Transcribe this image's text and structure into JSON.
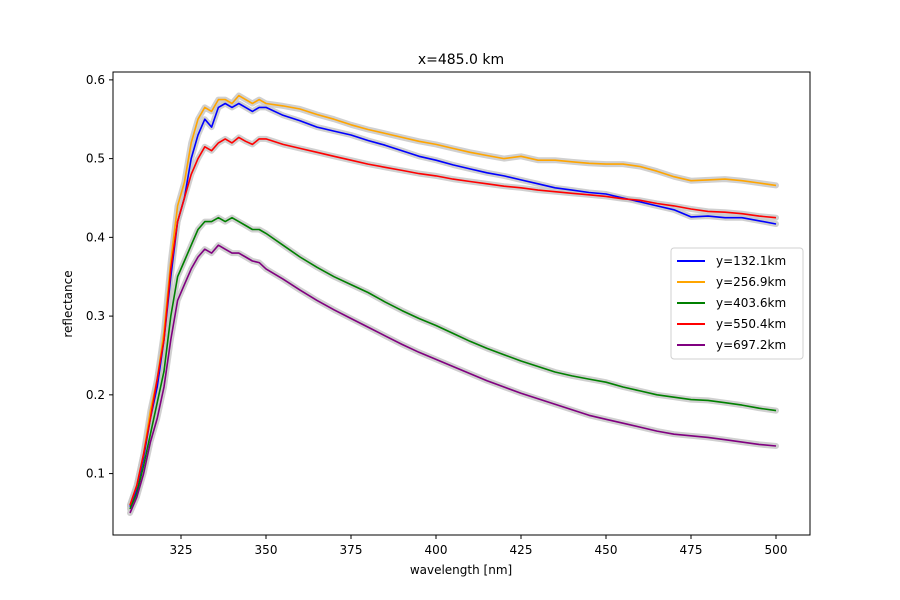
{
  "chart_data": {
    "type": "line",
    "title": "x=485.0 km",
    "xlabel": "wavelength [nm]",
    "ylabel": "reflectance",
    "xlim": [
      305,
      510
    ],
    "ylim": [
      0.022,
      0.61
    ],
    "xticks": [
      325,
      350,
      375,
      400,
      425,
      450,
      475,
      500
    ],
    "yticks": [
      0.1,
      0.2,
      0.3,
      0.4,
      0.5,
      0.6
    ],
    "xtick_labels": [
      "325",
      "350",
      "375",
      "400",
      "425",
      "450",
      "475",
      "500"
    ],
    "ytick_labels": [
      "0.1",
      "0.2",
      "0.3",
      "0.4",
      "0.5",
      "0.6"
    ],
    "grid": false,
    "legend_position": "center-right",
    "uncertainty_band_color": "#c8c8c8",
    "series": [
      {
        "name": "y=132.1km",
        "color": "#0000ff",
        "x": [
          310,
          312,
          314,
          316,
          318,
          320,
          322,
          324,
          326,
          328,
          330,
          332,
          334,
          336,
          338,
          340,
          342,
          344,
          346,
          348,
          350,
          355,
          360,
          365,
          370,
          375,
          380,
          385,
          390,
          395,
          400,
          405,
          410,
          415,
          420,
          425,
          430,
          435,
          440,
          445,
          450,
          455,
          460,
          465,
          470,
          475,
          480,
          485,
          490,
          495,
          500
        ],
        "y": [
          0.058,
          0.08,
          0.12,
          0.17,
          0.21,
          0.27,
          0.35,
          0.42,
          0.45,
          0.5,
          0.53,
          0.55,
          0.54,
          0.565,
          0.57,
          0.565,
          0.57,
          0.565,
          0.56,
          0.565,
          0.565,
          0.555,
          0.548,
          0.54,
          0.535,
          0.53,
          0.523,
          0.517,
          0.51,
          0.503,
          0.498,
          0.492,
          0.487,
          0.482,
          0.478,
          0.473,
          0.468,
          0.463,
          0.46,
          0.457,
          0.455,
          0.45,
          0.445,
          0.44,
          0.435,
          0.426,
          0.427,
          0.425,
          0.425,
          0.421,
          0.417
        ]
      },
      {
        "name": "y=256.9km",
        "color": "#ffa500",
        "x": [
          310,
          312,
          314,
          316,
          318,
          320,
          322,
          324,
          326,
          328,
          330,
          332,
          334,
          336,
          338,
          340,
          342,
          344,
          346,
          348,
          350,
          355,
          360,
          365,
          370,
          375,
          380,
          385,
          390,
          395,
          400,
          405,
          410,
          415,
          420,
          425,
          430,
          435,
          440,
          445,
          450,
          455,
          460,
          465,
          470,
          475,
          480,
          485,
          490,
          495,
          500
        ],
        "y": [
          0.06,
          0.085,
          0.125,
          0.18,
          0.22,
          0.28,
          0.37,
          0.44,
          0.47,
          0.52,
          0.55,
          0.565,
          0.56,
          0.575,
          0.575,
          0.57,
          0.58,
          0.575,
          0.57,
          0.575,
          0.57,
          0.567,
          0.563,
          0.556,
          0.55,
          0.543,
          0.537,
          0.532,
          0.527,
          0.522,
          0.518,
          0.513,
          0.508,
          0.504,
          0.5,
          0.503,
          0.498,
          0.498,
          0.496,
          0.494,
          0.493,
          0.493,
          0.49,
          0.484,
          0.477,
          0.472,
          0.473,
          0.474,
          0.472,
          0.469,
          0.466
        ]
      },
      {
        "name": "y=403.6km",
        "color": "#008000",
        "x": [
          310,
          312,
          314,
          316,
          318,
          320,
          322,
          324,
          326,
          328,
          330,
          332,
          334,
          336,
          338,
          340,
          342,
          344,
          346,
          348,
          350,
          355,
          360,
          365,
          370,
          375,
          380,
          385,
          390,
          395,
          400,
          405,
          410,
          415,
          420,
          425,
          430,
          435,
          440,
          445,
          450,
          455,
          460,
          465,
          470,
          475,
          480,
          485,
          490,
          495,
          500
        ],
        "y": [
          0.055,
          0.075,
          0.11,
          0.15,
          0.19,
          0.23,
          0.3,
          0.35,
          0.37,
          0.39,
          0.41,
          0.42,
          0.42,
          0.425,
          0.42,
          0.425,
          0.42,
          0.415,
          0.41,
          0.41,
          0.405,
          0.39,
          0.375,
          0.362,
          0.35,
          0.34,
          0.33,
          0.318,
          0.307,
          0.297,
          0.288,
          0.278,
          0.268,
          0.259,
          0.251,
          0.243,
          0.236,
          0.229,
          0.224,
          0.22,
          0.216,
          0.21,
          0.205,
          0.2,
          0.197,
          0.194,
          0.193,
          0.19,
          0.187,
          0.183,
          0.18
        ]
      },
      {
        "name": "y=550.4km",
        "color": "#ff0000",
        "x": [
          310,
          312,
          314,
          316,
          318,
          320,
          322,
          324,
          326,
          328,
          330,
          332,
          334,
          336,
          338,
          340,
          342,
          344,
          346,
          348,
          350,
          355,
          360,
          365,
          370,
          375,
          380,
          385,
          390,
          395,
          400,
          405,
          410,
          415,
          420,
          425,
          430,
          435,
          440,
          445,
          450,
          455,
          460,
          465,
          470,
          475,
          480,
          485,
          490,
          495,
          500
        ],
        "y": [
          0.06,
          0.085,
          0.125,
          0.17,
          0.22,
          0.27,
          0.36,
          0.42,
          0.45,
          0.48,
          0.5,
          0.515,
          0.51,
          0.52,
          0.525,
          0.52,
          0.527,
          0.522,
          0.518,
          0.525,
          0.525,
          0.518,
          0.513,
          0.508,
          0.503,
          0.498,
          0.493,
          0.489,
          0.485,
          0.481,
          0.478,
          0.474,
          0.471,
          0.468,
          0.465,
          0.463,
          0.46,
          0.458,
          0.456,
          0.454,
          0.452,
          0.449,
          0.447,
          0.443,
          0.44,
          0.436,
          0.433,
          0.432,
          0.43,
          0.427,
          0.425
        ]
      },
      {
        "name": "y=697.2km",
        "color": "#800080",
        "x": [
          310,
          312,
          314,
          316,
          318,
          320,
          322,
          324,
          326,
          328,
          330,
          332,
          334,
          336,
          338,
          340,
          342,
          344,
          346,
          348,
          350,
          355,
          360,
          365,
          370,
          375,
          380,
          385,
          390,
          395,
          400,
          405,
          410,
          415,
          420,
          425,
          430,
          435,
          440,
          445,
          450,
          455,
          460,
          465,
          470,
          475,
          480,
          485,
          490,
          495,
          500
        ],
        "y": [
          0.05,
          0.07,
          0.1,
          0.14,
          0.17,
          0.21,
          0.27,
          0.32,
          0.34,
          0.36,
          0.375,
          0.385,
          0.38,
          0.39,
          0.385,
          0.38,
          0.38,
          0.375,
          0.37,
          0.368,
          0.36,
          0.347,
          0.333,
          0.32,
          0.308,
          0.297,
          0.286,
          0.275,
          0.264,
          0.254,
          0.245,
          0.236,
          0.227,
          0.218,
          0.21,
          0.202,
          0.195,
          0.188,
          0.181,
          0.174,
          0.169,
          0.164,
          0.159,
          0.154,
          0.15,
          0.148,
          0.146,
          0.143,
          0.14,
          0.137,
          0.135
        ]
      }
    ]
  }
}
